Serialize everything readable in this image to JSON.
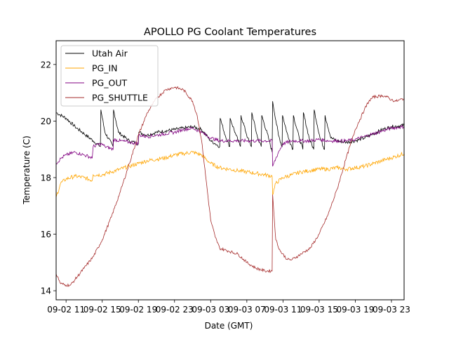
{
  "chart_data": {
    "type": "line",
    "title": "APOLLO PG Coolant Temperatures",
    "xlabel": "Date (GMT)",
    "ylabel": "Temperature (C)",
    "x_unit": "hours since 09-02 11:00 GMT",
    "xlim": [
      -1.1,
      37.4
    ],
    "ylim": [
      13.68,
      22.84
    ],
    "grid": false,
    "legend_position": "top-left",
    "x_ticks": [
      {
        "value": 0,
        "label": "09-02 11"
      },
      {
        "value": 4,
        "label": "09-02 15"
      },
      {
        "value": 8,
        "label": "09-02 19"
      },
      {
        "value": 12,
        "label": "09-02 23"
      },
      {
        "value": 16,
        "label": "09-03 03"
      },
      {
        "value": 20,
        "label": "09-03 07"
      },
      {
        "value": 24,
        "label": "09-03 11"
      },
      {
        "value": 28,
        "label": "09-03 15"
      },
      {
        "value": 32,
        "label": "09-03 19"
      },
      {
        "value": 36,
        "label": "09-03 23"
      }
    ],
    "y_ticks": [
      {
        "value": 14,
        "label": "14"
      },
      {
        "value": 16,
        "label": "16"
      },
      {
        "value": 18,
        "label": "18"
      },
      {
        "value": 20,
        "label": "20"
      },
      {
        "value": 22,
        "label": "22"
      }
    ],
    "series": [
      {
        "name": "Utah Air",
        "color": "#000000",
        "x": [
          -1.1,
          0,
          1,
          2,
          3,
          3.8,
          3.85,
          4.3,
          5.2,
          5.25,
          5.8,
          7,
          8,
          8.05,
          9,
          10,
          11,
          12,
          13,
          14,
          15,
          16,
          16.5,
          17,
          17.05,
          17.6,
          18.1,
          18.15,
          18.8,
          19.3,
          19.35,
          20.1,
          20.5,
          20.55,
          21.2,
          21.6,
          21.65,
          22.4,
          22.8,
          22.85,
          23.5,
          23.9,
          23.95,
          24.6,
          25.1,
          25.15,
          25.8,
          26.2,
          26.25,
          26.9,
          27.4,
          27.45,
          28.1,
          28.6,
          28.65,
          29.3,
          30,
          31,
          32,
          33,
          34,
          35,
          36,
          37.4
        ],
        "y": [
          20.3,
          20.1,
          19.8,
          19.55,
          19.3,
          19.1,
          20.4,
          19.6,
          19.1,
          20.4,
          19.6,
          19.3,
          19.2,
          19.6,
          19.5,
          19.6,
          19.65,
          19.7,
          19.75,
          19.8,
          19.7,
          19.3,
          19.2,
          19.1,
          20.1,
          19.5,
          19.1,
          20.1,
          19.5,
          19.1,
          20.2,
          19.4,
          19.1,
          20.3,
          19.4,
          19.1,
          20.2,
          19.4,
          18.9,
          20.7,
          19.5,
          19.1,
          20.2,
          19.4,
          19.0,
          20.2,
          19.4,
          19.0,
          20.3,
          19.4,
          19.0,
          20.4,
          19.4,
          19.0,
          20.2,
          19.4,
          19.3,
          19.25,
          19.3,
          19.4,
          19.55,
          19.7,
          19.8,
          19.85
        ]
      },
      {
        "name": "PG_IN",
        "color": "#ffa500",
        "x": [
          -1.1,
          -0.6,
          0,
          1,
          2,
          2.9,
          3,
          4,
          5,
          6,
          7,
          8,
          9,
          10,
          11,
          12,
          13,
          14,
          15,
          16,
          17,
          18,
          19,
          20,
          21,
          22,
          22.8,
          22.85,
          23.2,
          24,
          25,
          26,
          27,
          28,
          29,
          30,
          31,
          32,
          33,
          34,
          35,
          36,
          37.4
        ],
        "y": [
          17.3,
          17.8,
          17.95,
          18.05,
          18.0,
          17.9,
          18.1,
          18.1,
          18.2,
          18.3,
          18.4,
          18.5,
          18.6,
          18.65,
          18.7,
          18.8,
          18.85,
          18.9,
          18.8,
          18.5,
          18.35,
          18.3,
          18.25,
          18.2,
          18.15,
          18.1,
          18.05,
          17.4,
          17.8,
          18.0,
          18.1,
          18.2,
          18.25,
          18.3,
          18.3,
          18.35,
          18.3,
          18.35,
          18.4,
          18.5,
          18.6,
          18.7,
          18.85
        ]
      },
      {
        "name": "PG_OUT",
        "color": "#800080",
        "x": [
          -1.1,
          -0.5,
          0,
          1,
          2,
          2.9,
          3,
          3.85,
          4.3,
          5.2,
          5.25,
          6,
          7,
          8,
          8.05,
          9,
          10,
          11,
          12,
          13,
          14,
          15,
          16,
          17,
          18,
          19,
          20,
          21,
          22,
          22.8,
          22.85,
          23.5,
          24,
          25,
          26,
          27,
          28,
          29,
          30,
          31,
          32,
          33,
          34,
          35,
          36,
          37.4
        ],
        "y": [
          18.5,
          18.7,
          18.8,
          18.9,
          18.8,
          18.7,
          19.1,
          19.2,
          19.1,
          19.0,
          19.35,
          19.3,
          19.25,
          19.2,
          19.5,
          19.45,
          19.5,
          19.55,
          19.6,
          19.7,
          19.75,
          19.6,
          19.4,
          19.3,
          19.3,
          19.3,
          19.3,
          19.3,
          19.3,
          19.3,
          18.4,
          18.9,
          19.2,
          19.3,
          19.3,
          19.3,
          19.35,
          19.3,
          19.3,
          19.3,
          19.35,
          19.45,
          19.55,
          19.65,
          19.75,
          19.8
        ]
      },
      {
        "name": "PG_SHUTTLE",
        "color": "#a52a2a",
        "x": [
          -1.1,
          -0.6,
          0,
          0.5,
          1,
          2,
          3,
          4,
          5,
          6,
          7,
          8,
          9,
          10,
          11,
          12,
          13,
          14,
          14.5,
          15,
          15.5,
          16,
          16.5,
          17,
          18,
          19,
          20,
          21,
          22,
          22.8,
          22.85,
          23.2,
          23.7,
          24.5,
          25,
          26,
          27,
          28,
          29,
          30,
          31,
          32,
          33,
          33.5,
          34,
          35,
          35.5,
          36,
          36.5,
          37.4
        ],
        "y": [
          14.6,
          14.25,
          14.2,
          14.2,
          14.4,
          14.8,
          15.2,
          15.8,
          16.6,
          17.5,
          18.5,
          19.5,
          20.3,
          20.8,
          21.1,
          21.2,
          21.1,
          20.7,
          20.2,
          19.3,
          17.9,
          16.5,
          15.9,
          15.5,
          15.4,
          15.3,
          15.0,
          14.8,
          14.7,
          14.7,
          17.4,
          15.8,
          15.4,
          15.1,
          15.1,
          15.3,
          15.5,
          16.0,
          16.7,
          17.6,
          18.7,
          19.7,
          20.4,
          20.7,
          20.85,
          20.9,
          20.85,
          20.75,
          20.7,
          20.8
        ]
      }
    ]
  }
}
